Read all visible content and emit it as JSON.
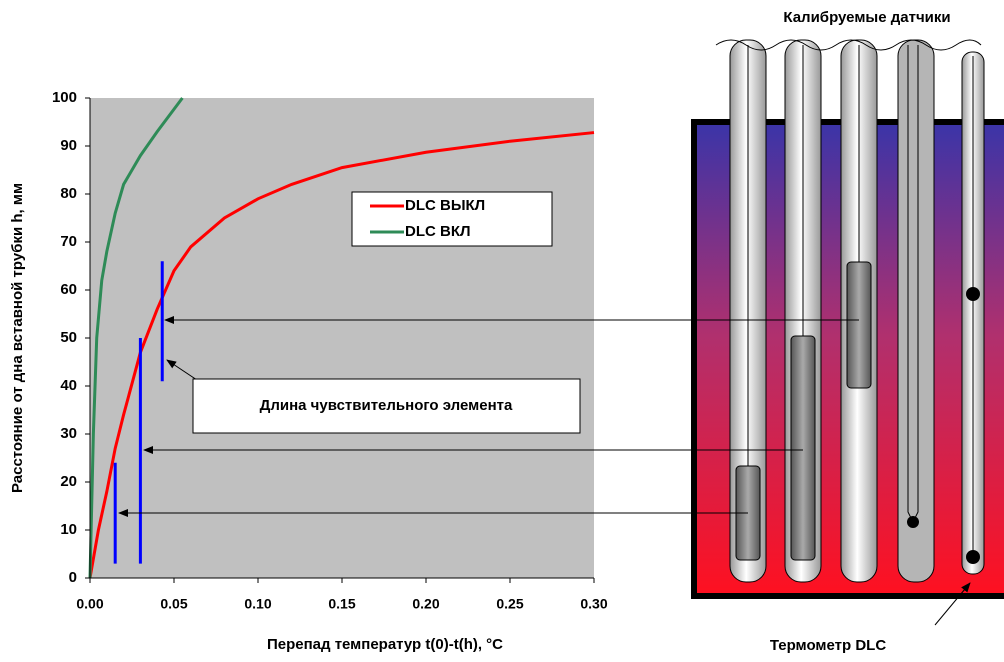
{
  "chart_data": {
    "type": "line",
    "x_label": "Перепад температур t(0)-t(h), °С",
    "y_label": "Расстояние от дна вставной трубки h, мм",
    "xlim": [
      0,
      0.3
    ],
    "ylim": [
      0,
      100
    ],
    "xticks": [
      {
        "value": 0,
        "label": "0.00"
      },
      {
        "value": 0.05,
        "label": "0.05"
      },
      {
        "value": 0.1,
        "label": "0.10"
      },
      {
        "value": 0.15,
        "label": "0.15"
      },
      {
        "value": 0.2,
        "label": "0.20"
      },
      {
        "value": 0.25,
        "label": "0.25"
      },
      {
        "value": 0.3,
        "label": "0.30"
      }
    ],
    "yticks": [
      0,
      10,
      20,
      30,
      40,
      50,
      60,
      70,
      80,
      90,
      100
    ],
    "series": [
      {
        "name": "DLC ВЫКЛ",
        "color": "#ff0000",
        "x": [
          0,
          0.005,
          0.01,
          0.015,
          0.02,
          0.03,
          0.04,
          0.05,
          0.06,
          0.08,
          0.1,
          0.12,
          0.15,
          0.2,
          0.25,
          0.3
        ],
        "values": [
          0,
          10,
          18,
          27,
          34,
          47,
          56,
          64,
          69,
          75,
          79,
          82,
          85.5,
          88.7,
          91,
          92.8
        ]
      },
      {
        "name": "DLC ВКЛ",
        "color": "#2e8b57",
        "x": [
          0,
          0.002,
          0.004,
          0.007,
          0.01,
          0.015,
          0.02,
          0.03,
          0.04,
          0.055
        ],
        "values": [
          0,
          30,
          50,
          62,
          68,
          76,
          82,
          88,
          93,
          100
        ]
      }
    ],
    "sensor_bars": {
      "color": "#0000ff",
      "items": [
        {
          "x": 0.015,
          "y": [
            3,
            24
          ]
        },
        {
          "x": 0.03,
          "y": [
            3,
            50
          ]
        },
        {
          "x": 0.043,
          "y": [
            41,
            66
          ]
        }
      ]
    },
    "annotation": "Длина чувствительного элемента"
  },
  "diagram": {
    "title": "Калибруемые датчики",
    "thermometer_label": "Термометр DLC"
  }
}
